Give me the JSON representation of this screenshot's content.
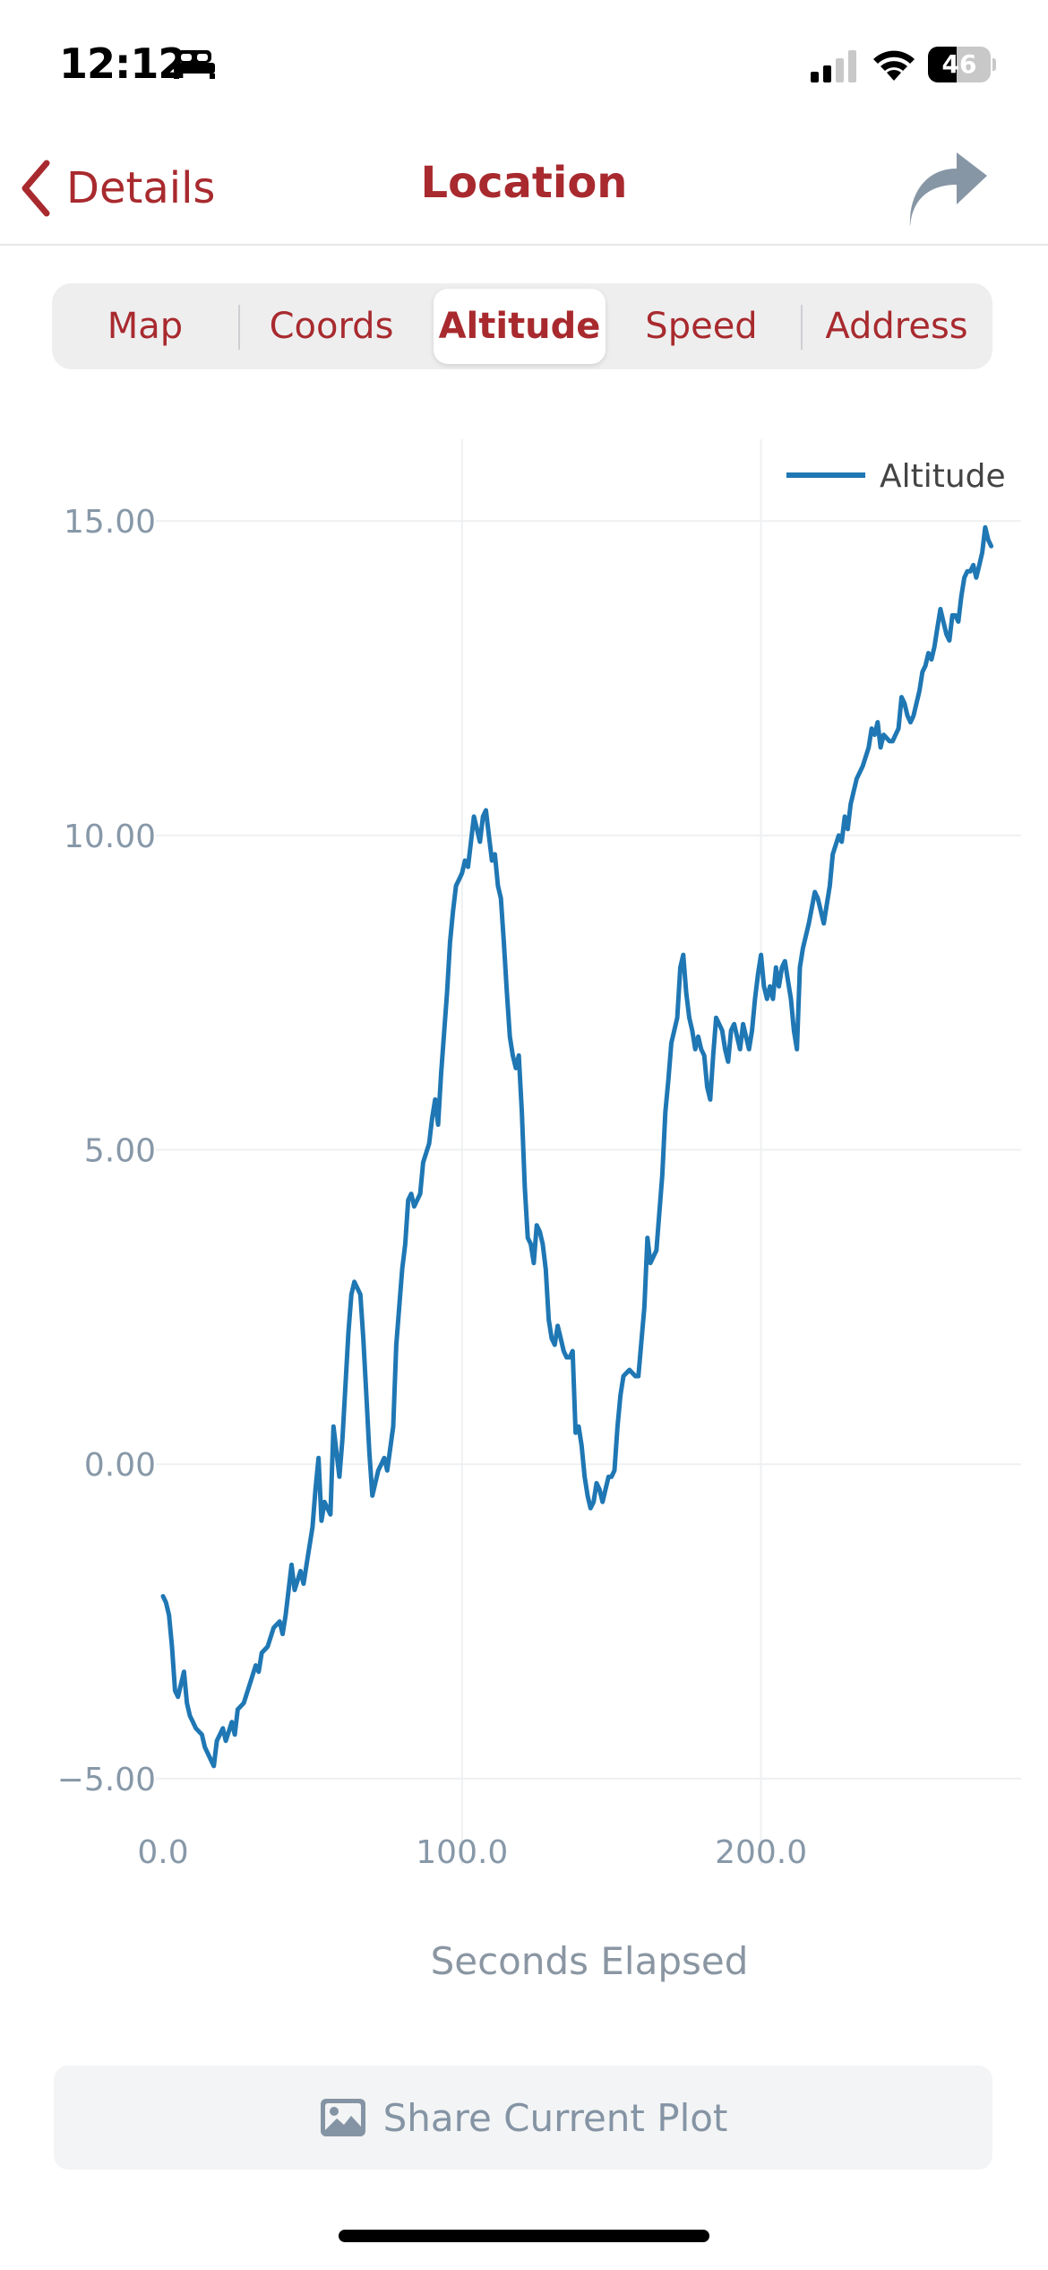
{
  "status_bar": {
    "time": "12:12",
    "battery": "46",
    "battery_level": 0.46,
    "icons": [
      "sleep-icon",
      "signal-icon",
      "wifi-icon",
      "battery-icon"
    ]
  },
  "nav": {
    "back_label": "Details",
    "title": "Location",
    "share_icon": "share-arrow-icon",
    "accent_color": "#a82a2e"
  },
  "tabs": [
    {
      "label": "Map",
      "active": false
    },
    {
      "label": "Coords",
      "active": false
    },
    {
      "label": "Altitude",
      "active": true
    },
    {
      "label": "Speed",
      "active": false
    },
    {
      "label": "Address",
      "active": false
    }
  ],
  "chart_data": {
    "type": "line",
    "xlabel": "Seconds Elapsed",
    "ylabel": "",
    "xlim": [
      0,
      287
    ],
    "ylim": [
      -5.8,
      16.3
    ],
    "x_ticks": [
      0,
      100,
      200
    ],
    "x_tick_labels": [
      "0.0",
      "100.0",
      "200.0"
    ],
    "y_ticks": [
      15,
      10,
      5,
      0,
      -5
    ],
    "y_tick_labels": [
      "15.00",
      "10.00",
      "5.00",
      "0.00",
      "−5.00"
    ],
    "grid": true,
    "legend_position": "top-right",
    "series": [
      {
        "name": "Altitude",
        "color": "#1f77b4",
        "points": [
          [
            0,
            -2.1
          ],
          [
            1,
            -2.2
          ],
          [
            2,
            -2.4
          ],
          [
            3,
            -2.9
          ],
          [
            4,
            -3.6
          ],
          [
            5,
            -3.7
          ],
          [
            6,
            -3.5
          ],
          [
            7,
            -3.3
          ],
          [
            8,
            -3.8
          ],
          [
            9,
            -4.0
          ],
          [
            10,
            -4.1
          ],
          [
            11,
            -4.2
          ],
          [
            13,
            -4.3
          ],
          [
            14,
            -4.5
          ],
          [
            17,
            -4.8
          ],
          [
            18,
            -4.4
          ],
          [
            20,
            -4.2
          ],
          [
            21,
            -4.4
          ],
          [
            23,
            -4.1
          ],
          [
            24,
            -4.3
          ],
          [
            25,
            -3.9
          ],
          [
            27,
            -3.8
          ],
          [
            29,
            -3.5
          ],
          [
            31,
            -3.2
          ],
          [
            32,
            -3.3
          ],
          [
            33,
            -3.0
          ],
          [
            35,
            -2.9
          ],
          [
            37,
            -2.6
          ],
          [
            39,
            -2.5
          ],
          [
            40,
            -2.7
          ],
          [
            41,
            -2.4
          ],
          [
            43,
            -1.6
          ],
          [
            44,
            -2.0
          ],
          [
            46,
            -1.7
          ],
          [
            47,
            -1.9
          ],
          [
            48,
            -1.6
          ],
          [
            50,
            -1.0
          ],
          [
            51,
            -0.4
          ],
          [
            52,
            0.1
          ],
          [
            53,
            -0.9
          ],
          [
            54,
            -0.6
          ],
          [
            56,
            -0.8
          ],
          [
            57,
            0.6
          ],
          [
            59,
            -0.2
          ],
          [
            60,
            0.4
          ],
          [
            62,
            2.1
          ],
          [
            63,
            2.7
          ],
          [
            64,
            2.9
          ],
          [
            66,
            2.7
          ],
          [
            67,
            2.0
          ],
          [
            68,
            1.1
          ],
          [
            69,
            0.2
          ],
          [
            70,
            -0.5
          ],
          [
            72,
            -0.1
          ],
          [
            73,
            0.0
          ],
          [
            74,
            0.1
          ],
          [
            75,
            -0.1
          ],
          [
            77,
            0.6
          ],
          [
            78,
            1.9
          ],
          [
            80,
            3.1
          ],
          [
            81,
            3.5
          ],
          [
            82,
            4.2
          ],
          [
            83,
            4.3
          ],
          [
            84,
            4.1
          ],
          [
            86,
            4.3
          ],
          [
            87,
            4.8
          ],
          [
            89,
            5.1
          ],
          [
            90,
            5.5
          ],
          [
            91,
            5.8
          ],
          [
            92,
            5.4
          ],
          [
            93,
            6.2
          ],
          [
            95,
            7.5
          ],
          [
            96,
            8.3
          ],
          [
            97,
            8.8
          ],
          [
            98,
            9.2
          ],
          [
            99,
            9.3
          ],
          [
            100,
            9.4
          ],
          [
            101,
            9.6
          ],
          [
            102,
            9.5
          ],
          [
            103,
            9.9
          ],
          [
            104,
            10.3
          ],
          [
            105,
            10.1
          ],
          [
            106,
            9.9
          ],
          [
            107,
            10.3
          ],
          [
            108,
            10.4
          ],
          [
            109,
            10.0
          ],
          [
            110,
            9.6
          ],
          [
            111,
            9.7
          ],
          [
            112,
            9.2
          ],
          [
            113,
            9.0
          ],
          [
            114,
            8.3
          ],
          [
            115,
            7.5
          ],
          [
            116,
            6.8
          ],
          [
            117,
            6.5
          ],
          [
            118,
            6.3
          ],
          [
            119,
            6.5
          ],
          [
            120,
            5.6
          ],
          [
            121,
            4.4
          ],
          [
            122,
            3.6
          ],
          [
            123,
            3.5
          ],
          [
            124,
            3.2
          ],
          [
            125,
            3.8
          ],
          [
            126,
            3.7
          ],
          [
            127,
            3.5
          ],
          [
            128,
            3.1
          ],
          [
            129,
            2.3
          ],
          [
            130,
            2.0
          ],
          [
            131,
            1.9
          ],
          [
            132,
            2.2
          ],
          [
            133,
            2.0
          ],
          [
            134,
            1.8
          ],
          [
            135,
            1.7
          ],
          [
            136,
            1.7
          ],
          [
            137,
            1.8
          ],
          [
            138,
            0.5
          ],
          [
            139,
            0.6
          ],
          [
            140,
            0.3
          ],
          [
            141,
            -0.2
          ],
          [
            142,
            -0.5
          ],
          [
            143,
            -0.7
          ],
          [
            144,
            -0.6
          ],
          [
            145,
            -0.3
          ],
          [
            146,
            -0.4
          ],
          [
            147,
            -0.6
          ],
          [
            148,
            -0.4
          ],
          [
            149,
            -0.2
          ],
          [
            150,
            -0.2
          ],
          [
            151,
            -0.1
          ],
          [
            152,
            0.6
          ],
          [
            153,
            1.1
          ],
          [
            154,
            1.4
          ],
          [
            156,
            1.5
          ],
          [
            158,
            1.4
          ],
          [
            159,
            1.4
          ],
          [
            161,
            2.5
          ],
          [
            162,
            3.6
          ],
          [
            163,
            3.2
          ],
          [
            164,
            3.3
          ],
          [
            165,
            3.4
          ],
          [
            167,
            4.6
          ],
          [
            168,
            5.6
          ],
          [
            169,
            6.1
          ],
          [
            170,
            6.7
          ],
          [
            171,
            6.9
          ],
          [
            172,
            7.1
          ],
          [
            173,
            7.9
          ],
          [
            174,
            8.1
          ],
          [
            175,
            7.5
          ],
          [
            176,
            7.1
          ],
          [
            177,
            6.9
          ],
          [
            178,
            6.6
          ],
          [
            179,
            6.8
          ],
          [
            180,
            6.6
          ],
          [
            181,
            6.5
          ],
          [
            182,
            6.0
          ],
          [
            183,
            5.8
          ],
          [
            184,
            6.5
          ],
          [
            185,
            7.1
          ],
          [
            186,
            7.0
          ],
          [
            187,
            6.9
          ],
          [
            188,
            6.6
          ],
          [
            189,
            6.4
          ],
          [
            190,
            6.9
          ],
          [
            191,
            7.0
          ],
          [
            192,
            6.8
          ],
          [
            193,
            6.6
          ],
          [
            194,
            7.0
          ],
          [
            195,
            6.8
          ],
          [
            196,
            6.6
          ],
          [
            197,
            6.9
          ],
          [
            198,
            7.4
          ],
          [
            199,
            7.8
          ],
          [
            200,
            8.1
          ],
          [
            201,
            7.6
          ],
          [
            202,
            7.4
          ],
          [
            203,
            7.6
          ],
          [
            204,
            7.4
          ],
          [
            205,
            7.9
          ],
          [
            206,
            7.6
          ],
          [
            207,
            7.9
          ],
          [
            208,
            8.0
          ],
          [
            209,
            7.7
          ],
          [
            210,
            7.4
          ],
          [
            211,
            6.9
          ],
          [
            212,
            6.6
          ],
          [
            213,
            7.9
          ],
          [
            214,
            8.2
          ],
          [
            216,
            8.6
          ],
          [
            218,
            9.1
          ],
          [
            219,
            9.0
          ],
          [
            221,
            8.6
          ],
          [
            222,
            8.9
          ],
          [
            223,
            9.2
          ],
          [
            224,
            9.7
          ],
          [
            226,
            10.0
          ],
          [
            227,
            9.9
          ],
          [
            228,
            10.3
          ],
          [
            229,
            10.1
          ],
          [
            230,
            10.5
          ],
          [
            232,
            10.9
          ],
          [
            234,
            11.1
          ],
          [
            236,
            11.4
          ],
          [
            237,
            11.7
          ],
          [
            238,
            11.6
          ],
          [
            239,
            11.8
          ],
          [
            240,
            11.4
          ],
          [
            241,
            11.6
          ],
          [
            243,
            11.5
          ],
          [
            244,
            11.5
          ],
          [
            246,
            11.7
          ],
          [
            247,
            12.2
          ],
          [
            248,
            12.1
          ],
          [
            249,
            11.9
          ],
          [
            250,
            11.8
          ],
          [
            251,
            11.9
          ],
          [
            253,
            12.3
          ],
          [
            254,
            12.6
          ],
          [
            255,
            12.7
          ],
          [
            256,
            12.9
          ],
          [
            257,
            12.8
          ],
          [
            258,
            13.0
          ],
          [
            259,
            13.3
          ],
          [
            260,
            13.6
          ],
          [
            261,
            13.4
          ],
          [
            262,
            13.2
          ],
          [
            263,
            13.1
          ],
          [
            264,
            13.5
          ],
          [
            265,
            13.5
          ],
          [
            266,
            13.4
          ],
          [
            267,
            13.8
          ],
          [
            268,
            14.1
          ],
          [
            269,
            14.2
          ],
          [
            270,
            14.2
          ],
          [
            271,
            14.3
          ],
          [
            272,
            14.1
          ],
          [
            273,
            14.3
          ],
          [
            274,
            14.5
          ],
          [
            275,
            14.9
          ],
          [
            276,
            14.7
          ],
          [
            277,
            14.6
          ]
        ]
      }
    ]
  },
  "share_plot": {
    "label": "Share Current Plot",
    "icon": "image-icon"
  }
}
